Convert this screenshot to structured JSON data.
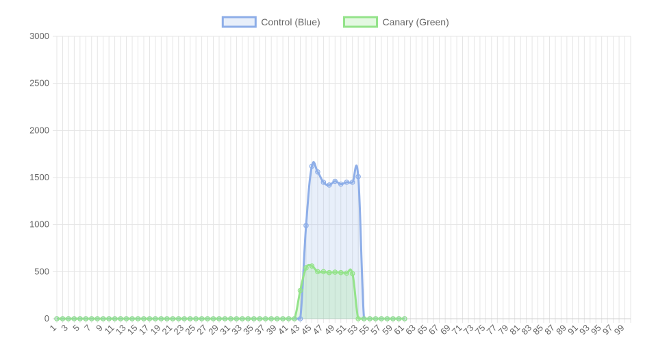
{
  "colors": {
    "control_line": "#8EAEE8",
    "control_fill": "rgba(142,174,232,0.20)",
    "canary_line": "#94E38A",
    "canary_fill": "rgba(148,227,138,0.25)",
    "grid": "#E5E5E5",
    "axis": "#D0D0D0",
    "text": "#666666"
  },
  "chart_data": {
    "type": "area",
    "title": "",
    "xlabel": "",
    "ylabel": "",
    "x": [
      1,
      2,
      3,
      4,
      5,
      6,
      7,
      8,
      9,
      10,
      11,
      12,
      13,
      14,
      15,
      16,
      17,
      18,
      19,
      20,
      21,
      22,
      23,
      24,
      25,
      26,
      27,
      28,
      29,
      30,
      31,
      32,
      33,
      34,
      35,
      36,
      37,
      38,
      39,
      40,
      41,
      42,
      43,
      44,
      45,
      46,
      47,
      48,
      49,
      50,
      51,
      52,
      53,
      54,
      55,
      56,
      57,
      58,
      59,
      60,
      61,
      62,
      63,
      64,
      65,
      66,
      67,
      68,
      69,
      70,
      71,
      72,
      73,
      74,
      75,
      76,
      77,
      78,
      79,
      80,
      81,
      82,
      83,
      84,
      85,
      86,
      87,
      88,
      89,
      90,
      91,
      92,
      93,
      94,
      95,
      96,
      97,
      98,
      99,
      100
    ],
    "x_tick_labels": [
      "1",
      "3",
      "5",
      "7",
      "9",
      "11",
      "13",
      "15",
      "17",
      "19",
      "21",
      "23",
      "25",
      "27",
      "29",
      "31",
      "33",
      "35",
      "37",
      "39",
      "41",
      "43",
      "45",
      "47",
      "49",
      "51",
      "53",
      "55",
      "57",
      "59",
      "61",
      "63",
      "65",
      "67",
      "69",
      "71",
      "73",
      "75",
      "77",
      "79",
      "81",
      "83",
      "85",
      "87",
      "89",
      "91",
      "93",
      "95",
      "97",
      "99"
    ],
    "y_tick_labels": [
      "0",
      "500",
      "1000",
      "1500",
      "2000",
      "2500",
      "3000"
    ],
    "ylim": [
      0,
      3000
    ],
    "y_ticks": [
      0,
      500,
      1000,
      1500,
      2000,
      2500,
      3000
    ],
    "grid": true,
    "legend_position": "top-center",
    "series": [
      {
        "name": "Control (Blue)",
        "color_key": "control",
        "points": [
          [
            1,
            0
          ],
          [
            2,
            0
          ],
          [
            3,
            0
          ],
          [
            4,
            0
          ],
          [
            5,
            0
          ],
          [
            6,
            0
          ],
          [
            7,
            0
          ],
          [
            8,
            0
          ],
          [
            9,
            0
          ],
          [
            10,
            0
          ],
          [
            11,
            0
          ],
          [
            12,
            0
          ],
          [
            13,
            0
          ],
          [
            14,
            0
          ],
          [
            15,
            0
          ],
          [
            16,
            0
          ],
          [
            17,
            0
          ],
          [
            18,
            0
          ],
          [
            19,
            0
          ],
          [
            20,
            0
          ],
          [
            21,
            0
          ],
          [
            22,
            0
          ],
          [
            23,
            0
          ],
          [
            24,
            0
          ],
          [
            25,
            0
          ],
          [
            26,
            0
          ],
          [
            27,
            0
          ],
          [
            28,
            0
          ],
          [
            29,
            0
          ],
          [
            30,
            0
          ],
          [
            31,
            0
          ],
          [
            32,
            0
          ],
          [
            33,
            0
          ],
          [
            34,
            0
          ],
          [
            35,
            0
          ],
          [
            36,
            0
          ],
          [
            37,
            0
          ],
          [
            38,
            0
          ],
          [
            39,
            0
          ],
          [
            40,
            0
          ],
          [
            41,
            0
          ],
          [
            42,
            0
          ],
          [
            43,
            0
          ],
          [
            44,
            990
          ],
          [
            45,
            1620
          ],
          [
            46,
            1560
          ],
          [
            47,
            1450
          ],
          [
            48,
            1420
          ],
          [
            49,
            1460
          ],
          [
            50,
            1430
          ],
          [
            51,
            1450
          ],
          [
            52,
            1450
          ],
          [
            53,
            1510
          ],
          [
            54,
            0
          ],
          [
            55,
            0
          ],
          [
            56,
            0
          ],
          [
            57,
            0
          ],
          [
            58,
            0
          ],
          [
            59,
            0
          ],
          [
            60,
            0
          ],
          [
            61,
            0
          ]
        ]
      },
      {
        "name": "Canary (Green)",
        "color_key": "canary",
        "points": [
          [
            1,
            0
          ],
          [
            2,
            0
          ],
          [
            3,
            0
          ],
          [
            4,
            0
          ],
          [
            5,
            0
          ],
          [
            6,
            0
          ],
          [
            7,
            0
          ],
          [
            8,
            0
          ],
          [
            9,
            0
          ],
          [
            10,
            0
          ],
          [
            11,
            0
          ],
          [
            12,
            0
          ],
          [
            13,
            0
          ],
          [
            14,
            0
          ],
          [
            15,
            0
          ],
          [
            16,
            0
          ],
          [
            17,
            0
          ],
          [
            18,
            0
          ],
          [
            19,
            0
          ],
          [
            20,
            0
          ],
          [
            21,
            0
          ],
          [
            22,
            0
          ],
          [
            23,
            0
          ],
          [
            24,
            0
          ],
          [
            25,
            0
          ],
          [
            26,
            0
          ],
          [
            27,
            0
          ],
          [
            28,
            0
          ],
          [
            29,
            0
          ],
          [
            30,
            0
          ],
          [
            31,
            0
          ],
          [
            32,
            0
          ],
          [
            33,
            0
          ],
          [
            34,
            0
          ],
          [
            35,
            0
          ],
          [
            36,
            0
          ],
          [
            37,
            0
          ],
          [
            38,
            0
          ],
          [
            39,
            0
          ],
          [
            40,
            0
          ],
          [
            41,
            0
          ],
          [
            42,
            0
          ],
          [
            43,
            300
          ],
          [
            44,
            540
          ],
          [
            45,
            560
          ],
          [
            46,
            500
          ],
          [
            47,
            500
          ],
          [
            48,
            490
          ],
          [
            49,
            495
          ],
          [
            50,
            490
          ],
          [
            51,
            485
          ],
          [
            52,
            480
          ],
          [
            53,
            0
          ],
          [
            54,
            0
          ],
          [
            55,
            0
          ],
          [
            56,
            0
          ],
          [
            57,
            0
          ],
          [
            58,
            0
          ],
          [
            59,
            0
          ],
          [
            60,
            0
          ],
          [
            61,
            0
          ]
        ]
      }
    ]
  }
}
